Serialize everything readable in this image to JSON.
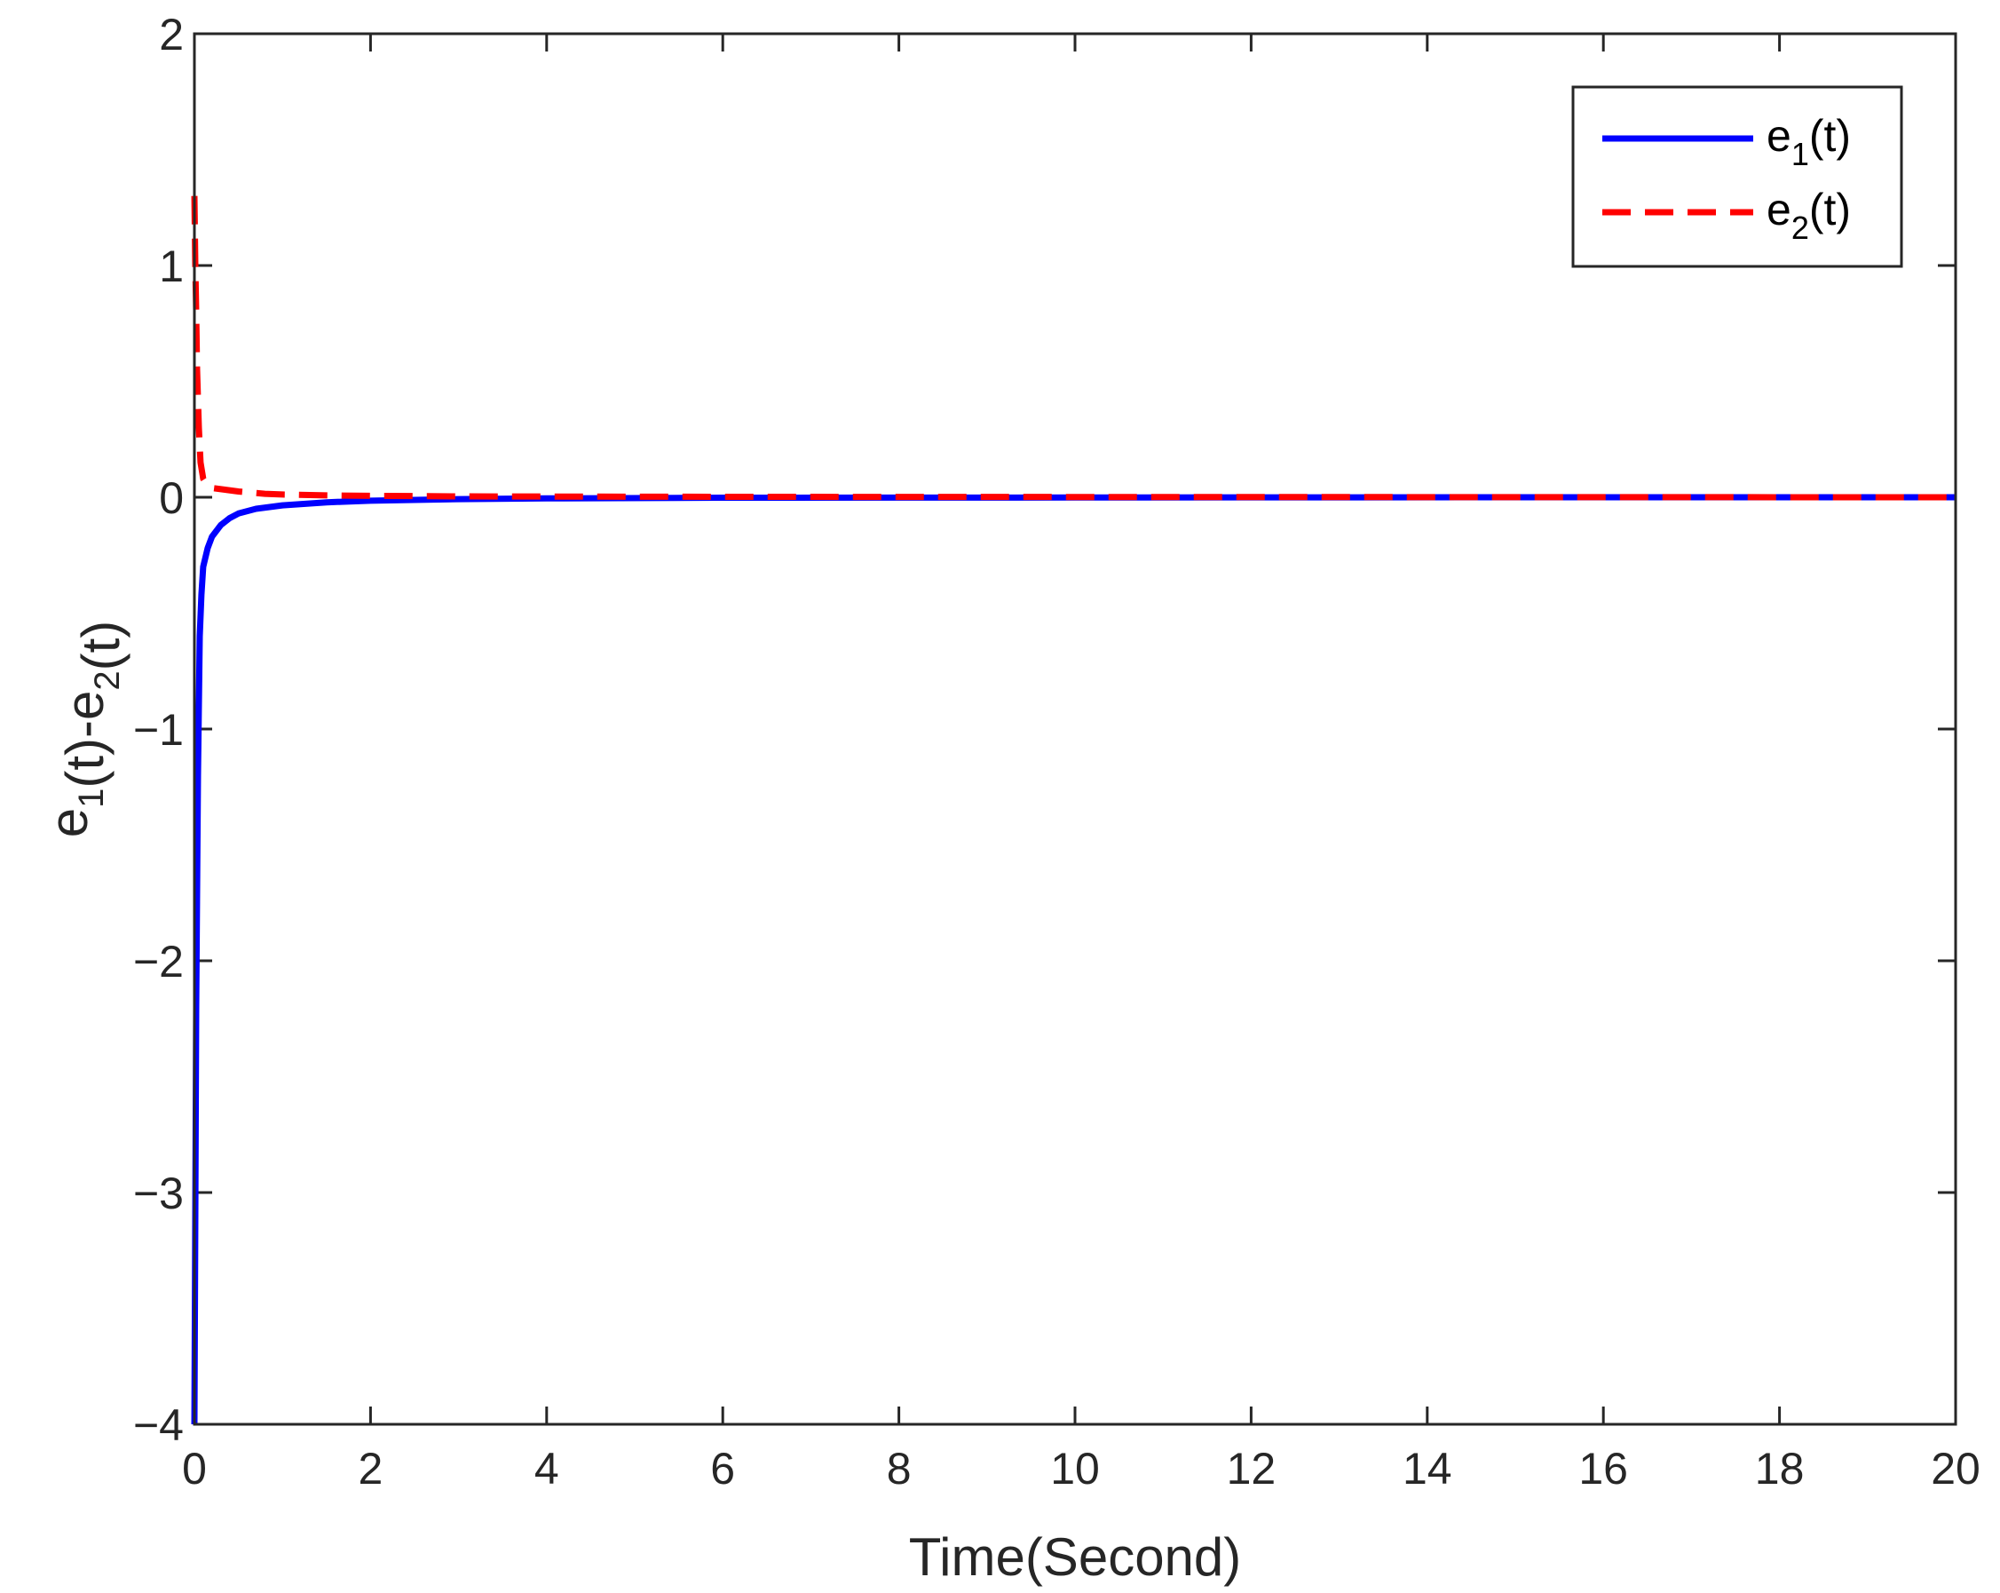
{
  "chart_data": {
    "type": "line",
    "xlabel": "Time(Second)",
    "ylabel": {
      "parts": [
        {
          "text": "e",
          "sub": "1"
        },
        {
          "text": "(t)-e",
          "sub": "2"
        },
        {
          "text": "(t)",
          "sub": ""
        }
      ]
    },
    "xlim": [
      0,
      20
    ],
    "ylim": [
      -4,
      2
    ],
    "xticks": [
      0,
      2,
      4,
      6,
      8,
      10,
      12,
      14,
      16,
      18,
      20
    ],
    "yticks": [
      -4,
      -3,
      -2,
      -1,
      0,
      1,
      2
    ],
    "xtick_labels": [
      "0",
      "2",
      "4",
      "6",
      "8",
      "10",
      "12",
      "14",
      "16",
      "18",
      "20"
    ],
    "ytick_labels": [
      "−4",
      "−3",
      "−2",
      "−1",
      "0",
      "1",
      "2"
    ],
    "grid": false,
    "legend_position": "top-right",
    "series": [
      {
        "name": "e1(t)",
        "legend": {
          "base": "e",
          "sub": "1",
          "suffix": "(t)"
        },
        "color": "#0000ff",
        "style": "solid",
        "x": [
          0,
          0.02,
          0.04,
          0.06,
          0.08,
          0.1,
          0.15,
          0.2,
          0.3,
          0.4,
          0.5,
          0.7,
          1.0,
          1.5,
          2.0,
          3.0,
          4.0,
          6.0,
          10.0,
          15.0,
          20.0
        ],
        "y": [
          -4.0,
          -2.2,
          -1.2,
          -0.6,
          -0.42,
          -0.3,
          -0.22,
          -0.17,
          -0.12,
          -0.09,
          -0.07,
          -0.05,
          -0.035,
          -0.022,
          -0.015,
          -0.008,
          -0.005,
          -0.002,
          -0.001,
          0.0,
          0.0
        ]
      },
      {
        "name": "e2(t)",
        "legend": {
          "base": "e",
          "sub": "2",
          "suffix": "(t)"
        },
        "color": "#ff0000",
        "style": "dashed",
        "x": [
          0,
          0.01,
          0.02,
          0.03,
          0.05,
          0.07,
          0.1,
          0.15,
          0.2,
          0.3,
          0.5,
          0.8,
          1.0,
          1.5,
          2.0,
          3.0,
          4.0,
          6.0,
          10.0,
          20.0
        ],
        "y": [
          1.3,
          1.0,
          0.8,
          0.55,
          0.3,
          0.15,
          0.08,
          0.05,
          0.04,
          0.035,
          0.025,
          0.015,
          0.012,
          0.008,
          0.006,
          0.004,
          0.003,
          0.002,
          0.001,
          0.0
        ]
      }
    ]
  }
}
